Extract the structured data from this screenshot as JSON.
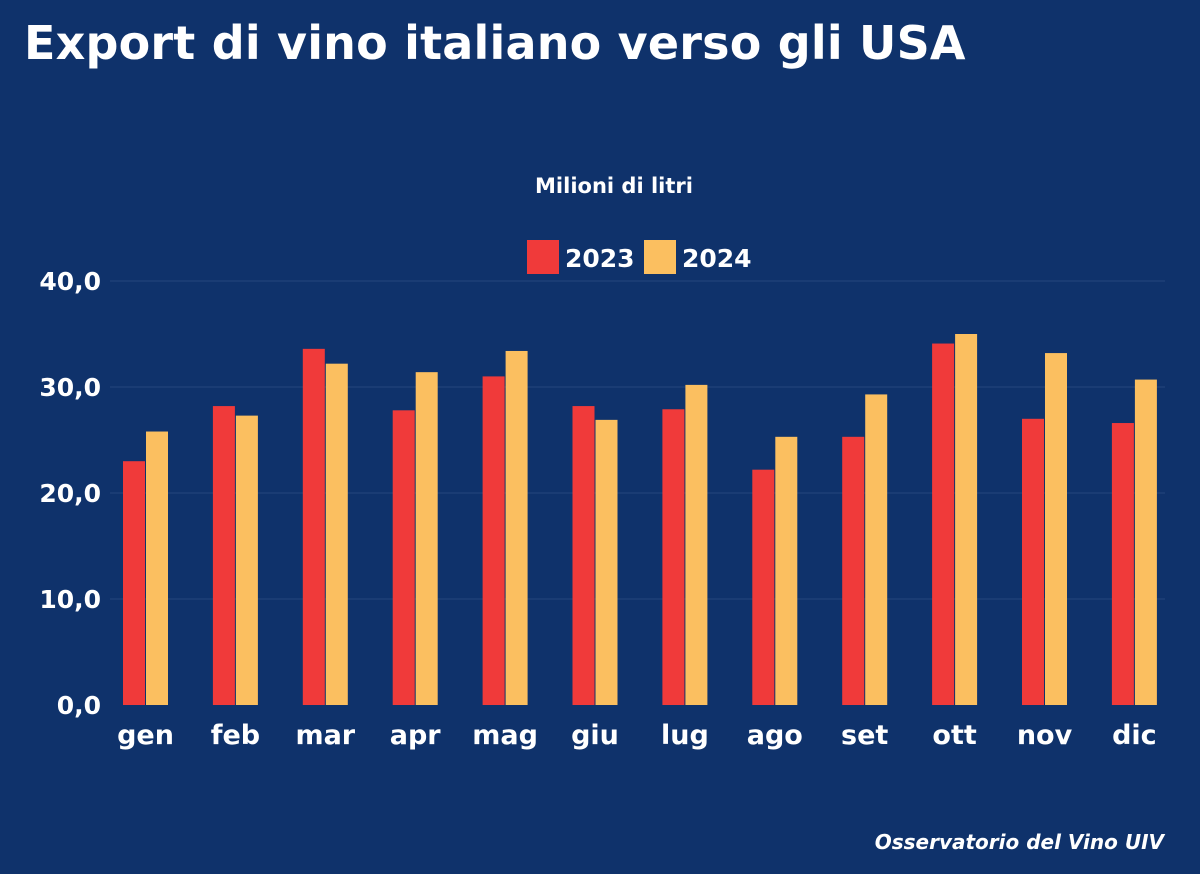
{
  "title": "Export di vino italiano verso gli USA",
  "source": "Osservatorio del Vino UIV",
  "chart_data": {
    "type": "bar",
    "subtitle": "Milioni di litri",
    "categories": [
      "gen",
      "feb",
      "mar",
      "apr",
      "mag",
      "giu",
      "lug",
      "ago",
      "set",
      "ott",
      "nov",
      "dic"
    ],
    "series": [
      {
        "name": "2023",
        "color": "#f03a3a",
        "values": [
          23.0,
          28.2,
          33.6,
          27.8,
          31.0,
          28.2,
          27.9,
          22.2,
          25.3,
          34.1,
          27.0,
          26.6
        ]
      },
      {
        "name": "2024",
        "color": "#fbbf60",
        "values": [
          25.8,
          27.3,
          32.2,
          31.4,
          33.4,
          26.9,
          30.2,
          25.3,
          29.3,
          35.0,
          33.2,
          30.7
        ]
      }
    ],
    "yticks": [
      "0,0",
      "10,0",
      "20,0",
      "30,0",
      "40,0"
    ],
    "ylim": [
      0,
      40
    ],
    "legend_position": "top-center",
    "grid": true
  }
}
